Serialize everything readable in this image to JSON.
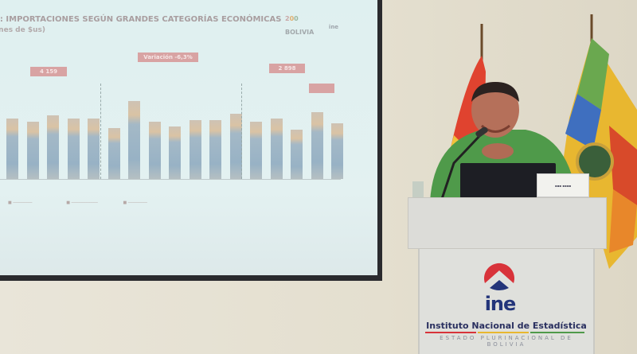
{
  "slide": {
    "title": "A: IMPORTACIONES SEGÚN GRANDES CATEGORÍAS ECONÓMICAS",
    "subtitle": "ones de $us)",
    "badges": [
      "4 159",
      "Variación -6,3%",
      "2 898"
    ],
    "logo_text": "BOLIVIA",
    "logo_ine": "ine"
  },
  "podium": {
    "logo": "ine",
    "institution": "Instituto Nacional de Estadística",
    "tagline": "ESTADO PLURINACIONAL DE BOLIVIA"
  },
  "colors": {
    "ine_red": "#d8333a",
    "ine_blue": "#23357a",
    "sweater": "#4f9a4a"
  }
}
